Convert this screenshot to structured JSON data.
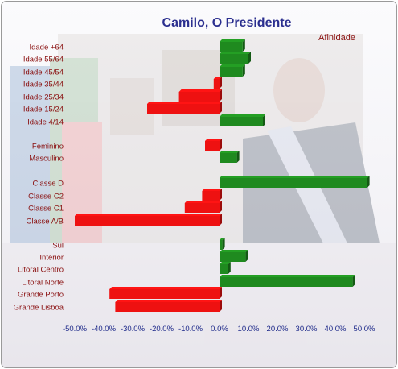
{
  "chart_data": {
    "type": "bar",
    "orientation": "horizontal",
    "title": "Camilo, O Presidente",
    "series": [
      {
        "name": "Afinidade",
        "values": [
          8,
          10,
          8,
          -2,
          -14,
          -25,
          15,
          -5,
          6,
          51,
          -6,
          -12,
          -50,
          1,
          9,
          3,
          46,
          -38,
          -36
        ]
      }
    ],
    "categories": [
      "Idade +64",
      "Idade 55/64",
      "Idade 45/54",
      "Idade 35/44",
      "Idade 25/34",
      "Idade 15/24",
      "Idade 4/14",
      "Feminino",
      "Masculino",
      "Classe D",
      "Classe C2",
      "Classe C1",
      "Classe A/B",
      "Sul",
      "Interior",
      "Litoral Centro",
      "Litoral Norte",
      "Grande Porto",
      "Grande Lisboa"
    ],
    "xlim": [
      -50,
      50
    ],
    "x_ticks": [
      "-50.0%",
      "-40.0%",
      "-30.0%",
      "-20.0%",
      "-10.0%",
      "0.0%",
      "10.0%",
      "20.0%",
      "30.0%",
      "40.0%",
      "50.0%"
    ],
    "positive_color": "#1f8a1f",
    "negative_color": "#ee1111",
    "grid": false,
    "legend_position": "top-right"
  }
}
